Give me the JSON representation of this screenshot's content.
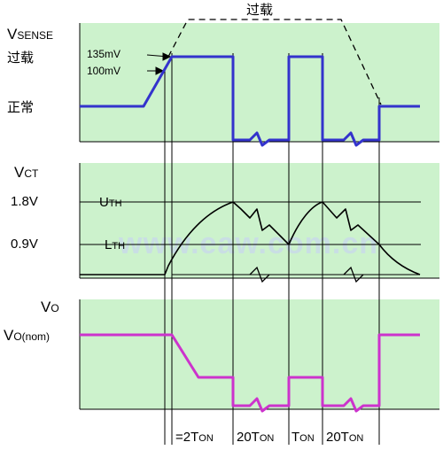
{
  "colors": {
    "panel_bg": "#ccf2cc",
    "sense_trace": "#3333cc",
    "ct_trace": "#000000",
    "out_trace": "#cc33cc",
    "watermark": "#c9dbe9"
  },
  "top_label": "过载",
  "sense_panel": {
    "title_main": "V",
    "title_sub": "SENSE",
    "overload_label": "过载",
    "normal_label": "正常",
    "level_135": "135mV",
    "level_100": "100mV"
  },
  "ct_panel": {
    "title_main": "V",
    "title_sub": "CT",
    "level_high": "1.8V",
    "level_low": "0.9V",
    "uth_main": "U",
    "uth_sub": "TH",
    "lth_main": "L",
    "lth_sub": "TH"
  },
  "out_panel": {
    "title_main": "V",
    "title_sub": "O",
    "nom_main": "V",
    "nom_sub": "O(nom)"
  },
  "timing": {
    "t1_prefix": "=2T",
    "t1_sub": "ON",
    "t2_prefix": "20T",
    "t2_sub": "ON",
    "t3_prefix": "T",
    "t3_sub": "ON",
    "t4_prefix": "20T",
    "t4_sub": "ON"
  },
  "watermark": "www.eaw.com.cn"
}
